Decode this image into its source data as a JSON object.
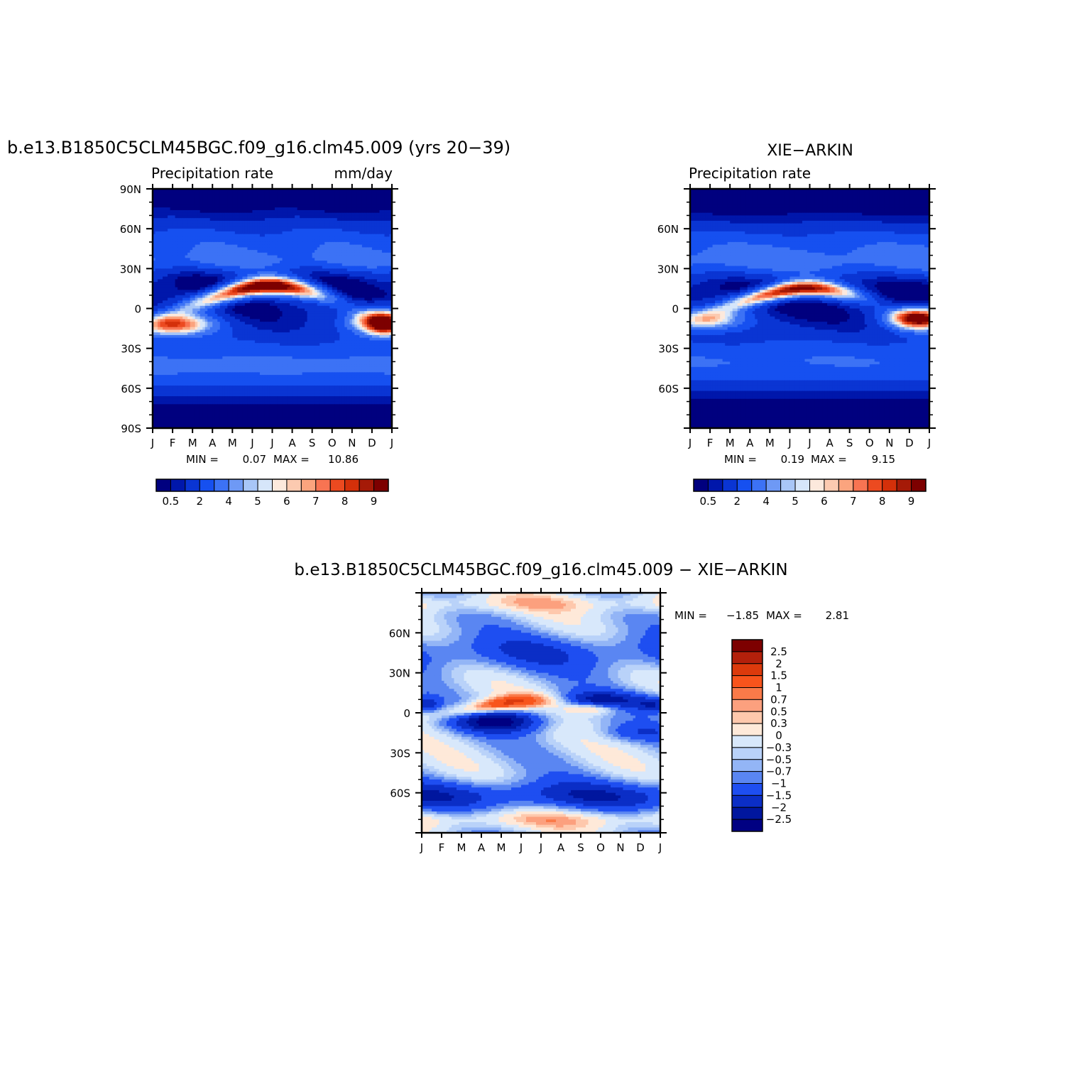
{
  "chart_data": [
    {
      "type": "heatmap",
      "title": "b.e13.B1850C5CLM45BGC.f09_g16.clm45.009 (yrs 20−39)",
      "subtitle_left": "Precipitation rate",
      "subtitle_right": "mm/day",
      "x_tick_labels": [
        "J",
        "F",
        "M",
        "A",
        "M",
        "J",
        "J",
        "A",
        "S",
        "O",
        "N",
        "D",
        "J"
      ],
      "y_tick_labels": [
        "90N",
        "60N",
        "30N",
        "0",
        "30S",
        "60S",
        "90S"
      ],
      "ylim": [
        -90,
        90
      ],
      "stats": {
        "min_label": "MIN =",
        "min": "0.07",
        "max_label": "MAX =",
        "max": "10.86"
      },
      "colorbar_labels": [
        "0.5",
        "2",
        "4",
        "5",
        "6",
        "7",
        "8",
        "9"
      ],
      "model": "sim"
    },
    {
      "type": "heatmap",
      "title": "XIE−ARKIN",
      "subtitle_left": "Precipitation rate",
      "subtitle_right": "",
      "x_tick_labels": [
        "J",
        "F",
        "M",
        "A",
        "M",
        "J",
        "J",
        "A",
        "S",
        "O",
        "N",
        "D",
        "J"
      ],
      "y_tick_labels": [
        "60N",
        "30N",
        "0",
        "30S",
        "60S"
      ],
      "ylim": [
        -90,
        90
      ],
      "stats": {
        "min_label": "MIN =",
        "min": "0.19",
        "max_label": "MAX =",
        "max": "9.15"
      },
      "colorbar_labels": [
        "0.5",
        "2",
        "4",
        "5",
        "6",
        "7",
        "8",
        "9"
      ],
      "model": "obs"
    },
    {
      "type": "heatmap",
      "title": "b.e13.B1850C5CLM45BGC.f09_g16.clm45.009 − XIE−ARKIN",
      "x_tick_labels": [
        "J",
        "F",
        "M",
        "A",
        "M",
        "J",
        "J",
        "A",
        "S",
        "O",
        "N",
        "D",
        "J"
      ],
      "y_tick_labels": [
        "60N",
        "30N",
        "0",
        "30S",
        "60S"
      ],
      "ylim": [
        -90,
        90
      ],
      "stats": {
        "min_label": "MIN =",
        "min": "−1.85",
        "max_label": "MAX =",
        "max": "2.81"
      },
      "colorbar_labels": [
        "2.5",
        "2",
        "1.5",
        "1",
        "0.7",
        "0.5",
        "0.3",
        "0",
        "−0.3",
        "−0.5",
        "−0.7",
        "−1",
        "−1.5",
        "−2",
        "−2.5"
      ],
      "model": "diff"
    }
  ],
  "colors": {
    "sequential": [
      "#00007f",
      "#0017ab",
      "#0a35d3",
      "#1650f0",
      "#3c72f5",
      "#6e99f5",
      "#a8c6f7",
      "#d6e6fa",
      "#fce9dc",
      "#fccab0",
      "#fba47e",
      "#f87452",
      "#ec4a20",
      "#d4300a",
      "#a51a07",
      "#7d0000"
    ],
    "diverging": [
      "#7d0000",
      "#b3200b",
      "#dc3a0c",
      "#f8541c",
      "#fa7a49",
      "#fca07e",
      "#fec8ac",
      "#fee9d9",
      "#d8e8fb",
      "#b9d2f9",
      "#93b5f6",
      "#5a86f2",
      "#1e4ef1",
      "#0b2ec6",
      "#00169e",
      "#000082"
    ]
  }
}
